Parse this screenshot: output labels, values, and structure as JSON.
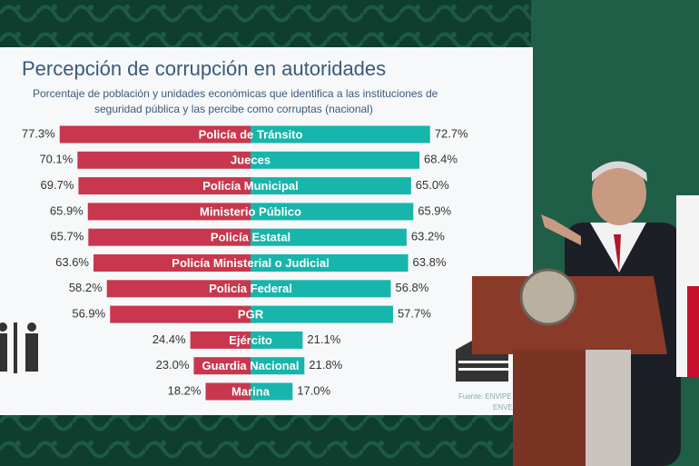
{
  "chart_data": {
    "type": "diverging-bar",
    "title": "Percepción de corrupción en autoridades",
    "subtitle": [
      "Porcentaje de población y unidades económicas que identifica a las instituciones de",
      "seguridad pública y las percibe como corruptas (nacional)"
    ],
    "categories": [
      "Policía de Tránsito",
      "Jueces",
      "Policía Municipal",
      "Ministerio Público",
      "Policía Estatal",
      "Policía Ministerial o Judicial",
      "Policía Federal",
      "PGR",
      "Ejército",
      "Guardia Nacional",
      "Marina"
    ],
    "series": [
      {
        "color": "#c8374d",
        "values": [
          77.3,
          70.1,
          69.7,
          65.9,
          65.7,
          63.6,
          58.2,
          56.9,
          24.4,
          23.0,
          18.2
        ],
        "value_labels": [
          "77.3%",
          "70.1%",
          "69.7%",
          "65.9%",
          "65.7%",
          "63.6%",
          "58.2%",
          "56.9%",
          "24.4%",
          "23.0%",
          "18.2%"
        ]
      },
      {
        "color": "#17b5ab",
        "values": [
          72.7,
          68.4,
          65.0,
          65.9,
          63.2,
          63.8,
          56.8,
          57.7,
          21.1,
          21.8,
          17.0
        ],
        "value_labels": [
          "72.7%",
          "68.4%",
          "65.0%",
          "65.9%",
          "63.2%",
          "63.8%",
          "56.8%",
          "57.7%",
          "21.1%",
          "21.8%",
          "17.0%"
        ]
      }
    ],
    "source": [
      "Fuente: ENVIPE",
      "ENVE"
    ]
  }
}
